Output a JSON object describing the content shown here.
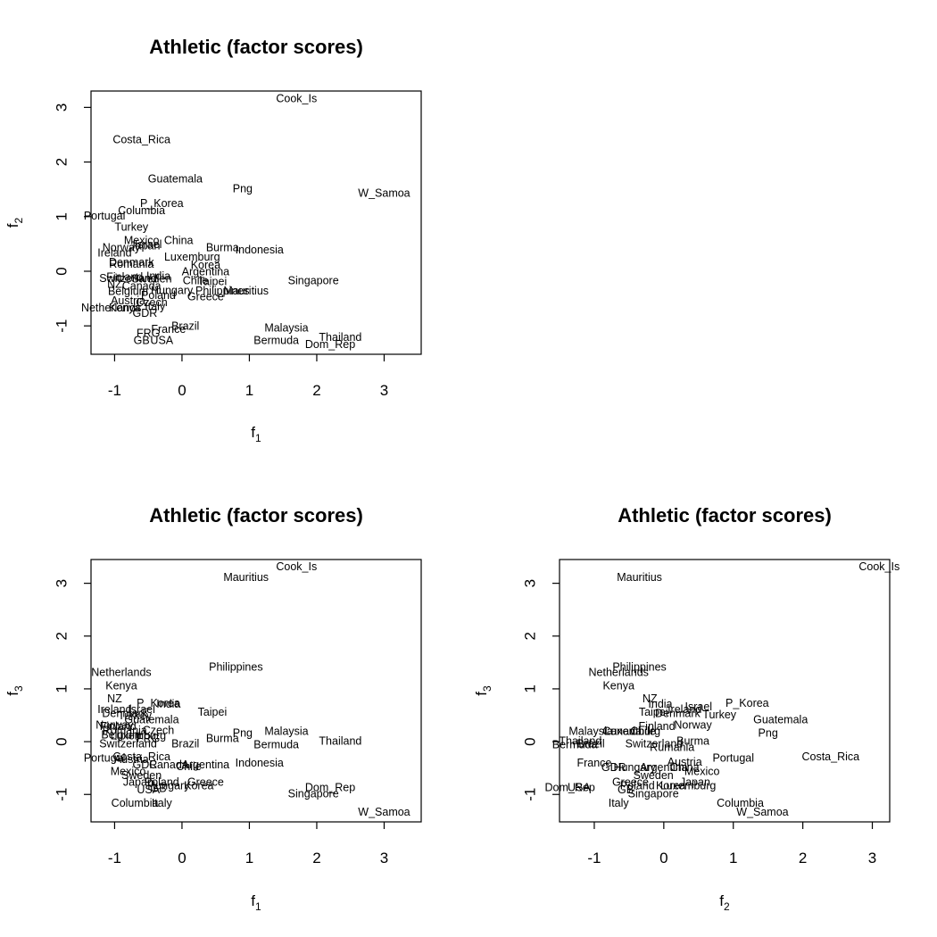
{
  "chart_data": [
    {
      "type": "scatter",
      "title": "Athletic (factor scores)",
      "xlabel": "f",
      "xlabel_sub": "1",
      "ylabel": "f",
      "ylabel_sub": "2",
      "xlim": [
        -1.35,
        3.55
      ],
      "ylim": [
        -1.52,
        3.3
      ],
      "xticks": [
        -1,
        0,
        1,
        2,
        3
      ],
      "yticks": [
        -1,
        0,
        1,
        2,
        3
      ],
      "points": [
        {
          "label": "Cook_Is",
          "x": 1.7,
          "y": 3.15
        },
        {
          "label": "Costa_Rica",
          "x": -0.6,
          "y": 2.4
        },
        {
          "label": "Guatemala",
          "x": -0.1,
          "y": 1.68
        },
        {
          "label": "Png",
          "x": 0.9,
          "y": 1.5
        },
        {
          "label": "W_Samoa",
          "x": 3.0,
          "y": 1.42
        },
        {
          "label": "P_Korea",
          "x": -0.3,
          "y": 1.23
        },
        {
          "label": "Columbia",
          "x": -0.6,
          "y": 1.1
        },
        {
          "label": "Portugal",
          "x": -1.15,
          "y": 1.0
        },
        {
          "label": "Turkey",
          "x": -0.75,
          "y": 0.8
        },
        {
          "label": "Mexico",
          "x": -0.6,
          "y": 0.55
        },
        {
          "label": "China",
          "x": -0.05,
          "y": 0.55
        },
        {
          "label": "Norway",
          "x": -0.9,
          "y": 0.42
        },
        {
          "label": "Israel",
          "x": -0.5,
          "y": 0.48
        },
        {
          "label": "Japan",
          "x": -0.55,
          "y": 0.45
        },
        {
          "label": "Burma",
          "x": 0.6,
          "y": 0.42
        },
        {
          "label": "Indonesia",
          "x": 1.15,
          "y": 0.38
        },
        {
          "label": "Ireland",
          "x": -1.0,
          "y": 0.32
        },
        {
          "label": "Luxemburg",
          "x": 0.15,
          "y": 0.25
        },
        {
          "label": "Denmark",
          "x": -0.75,
          "y": 0.15
        },
        {
          "label": "Romania",
          "x": -0.75,
          "y": 0.12
        },
        {
          "label": "Korea",
          "x": 0.35,
          "y": 0.1
        },
        {
          "label": "Argentina",
          "x": 0.35,
          "y": -0.02
        },
        {
          "label": "Singapore",
          "x": 1.95,
          "y": -0.18
        },
        {
          "label": "Finland",
          "x": -0.85,
          "y": -0.12
        },
        {
          "label": "Switzerland",
          "x": -0.8,
          "y": -0.14
        },
        {
          "label": "India",
          "x": -0.35,
          "y": -0.1
        },
        {
          "label": "Sweden",
          "x": -0.45,
          "y": -0.15
        },
        {
          "label": "Chile",
          "x": 0.2,
          "y": -0.18
        },
        {
          "label": "Taipei",
          "x": 0.45,
          "y": -0.2
        },
        {
          "label": "NZ",
          "x": -1.0,
          "y": -0.25
        },
        {
          "label": "Canada",
          "x": -0.6,
          "y": -0.28
        },
        {
          "label": "Hungary",
          "x": -0.15,
          "y": -0.36
        },
        {
          "label": "Philippines",
          "x": 0.6,
          "y": -0.37
        },
        {
          "label": "Mauritius",
          "x": 0.95,
          "y": -0.37
        },
        {
          "label": "Belgium",
          "x": -0.8,
          "y": -0.38
        },
        {
          "label": "Poland",
          "x": -0.35,
          "y": -0.45
        },
        {
          "label": "Greece",
          "x": 0.35,
          "y": -0.48
        },
        {
          "label": "Austria",
          "x": -0.8,
          "y": -0.55
        },
        {
          "label": "Czech",
          "x": -0.45,
          "y": -0.58
        },
        {
          "label": "Netherlands",
          "x": -1.05,
          "y": -0.68
        },
        {
          "label": "Kenya",
          "x": -0.85,
          "y": -0.68
        },
        {
          "label": "Italy",
          "x": -0.4,
          "y": -0.66
        },
        {
          "label": "GDR",
          "x": -0.55,
          "y": -0.78
        },
        {
          "label": "Brazil",
          "x": 0.05,
          "y": -1.02
        },
        {
          "label": "France",
          "x": -0.2,
          "y": -1.07
        },
        {
          "label": "Malaysia",
          "x": 1.55,
          "y": -1.05
        },
        {
          "label": "FRG",
          "x": -0.5,
          "y": -1.15
        },
        {
          "label": "Thailand",
          "x": 2.35,
          "y": -1.22
        },
        {
          "label": "GB",
          "x": -0.6,
          "y": -1.28
        },
        {
          "label": "USA",
          "x": -0.3,
          "y": -1.28
        },
        {
          "label": "Bermuda",
          "x": 1.4,
          "y": -1.28
        },
        {
          "label": "Dom_Rep",
          "x": 2.2,
          "y": -1.35
        }
      ]
    },
    {
      "type": "scatter",
      "title": "Athletic (factor scores)",
      "xlabel": "f",
      "xlabel_sub": "1",
      "ylabel": "f",
      "ylabel_sub": "3",
      "xlim": [
        -1.35,
        3.55
      ],
      "ylim": [
        -1.52,
        3.45
      ],
      "xticks": [
        -1,
        0,
        1,
        2,
        3
      ],
      "yticks": [
        -1,
        0,
        1,
        2,
        3
      ],
      "points": [
        {
          "label": "Cook_Is",
          "x": 1.7,
          "y": 3.3
        },
        {
          "label": "Mauritius",
          "x": 0.95,
          "y": 3.1
        },
        {
          "label": "Philippines",
          "x": 0.8,
          "y": 1.4
        },
        {
          "label": "Netherlands",
          "x": -0.9,
          "y": 1.3
        },
        {
          "label": "Kenya",
          "x": -0.9,
          "y": 1.05
        },
        {
          "label": "NZ",
          "x": -1.0,
          "y": 0.8
        },
        {
          "label": "P_Korea",
          "x": -0.35,
          "y": 0.72
        },
        {
          "label": "India",
          "x": -0.2,
          "y": 0.7
        },
        {
          "label": "Ireland",
          "x": -1.0,
          "y": 0.6
        },
        {
          "label": "Israel",
          "x": -0.6,
          "y": 0.6
        },
        {
          "label": "Taipei",
          "x": 0.45,
          "y": 0.55
        },
        {
          "label": "Denmark",
          "x": -0.85,
          "y": 0.52
        },
        {
          "label": "Turkey",
          "x": -0.7,
          "y": 0.48
        },
        {
          "label": "Guatemala",
          "x": -0.45,
          "y": 0.4
        },
        {
          "label": "Norway",
          "x": -1.0,
          "y": 0.3
        },
        {
          "label": "Finland",
          "x": -0.95,
          "y": 0.28
        },
        {
          "label": "Romania",
          "x": -0.85,
          "y": 0.2
        },
        {
          "label": "Czech",
          "x": -0.35,
          "y": 0.2
        },
        {
          "label": "Png",
          "x": 0.9,
          "y": 0.15
        },
        {
          "label": "Malaysia",
          "x": 1.55,
          "y": 0.18
        },
        {
          "label": "Belgium",
          "x": -0.9,
          "y": 0.12
        },
        {
          "label": "Luxemburg",
          "x": -0.65,
          "y": 0.1
        },
        {
          "label": "FRG",
          "x": -0.5,
          "y": 0.05
        },
        {
          "label": "Burma",
          "x": 0.6,
          "y": 0.05
        },
        {
          "label": "Thailand",
          "x": 2.35,
          "y": 0.0
        },
        {
          "label": "Switzerland",
          "x": -0.8,
          "y": -0.05
        },
        {
          "label": "Brazil",
          "x": 0.05,
          "y": -0.05
        },
        {
          "label": "Bermuda",
          "x": 1.4,
          "y": -0.07
        },
        {
          "label": "Portugal",
          "x": -1.15,
          "y": -0.32
        },
        {
          "label": "Costa_Rica",
          "x": -0.6,
          "y": -0.3
        },
        {
          "label": "Austria",
          "x": -0.75,
          "y": -0.35
        },
        {
          "label": "Indonesia",
          "x": 1.15,
          "y": -0.42
        },
        {
          "label": "Argentina",
          "x": 0.35,
          "y": -0.45
        },
        {
          "label": "GDR",
          "x": -0.55,
          "y": -0.45
        },
        {
          "label": "Canada",
          "x": -0.2,
          "y": -0.45
        },
        {
          "label": "Chile",
          "x": 0.1,
          "y": -0.48
        },
        {
          "label": "Mexico",
          "x": -0.8,
          "y": -0.58
        },
        {
          "label": "Sweden",
          "x": -0.6,
          "y": -0.65
        },
        {
          "label": "Japan",
          "x": -0.65,
          "y": -0.78
        },
        {
          "label": "Poland",
          "x": -0.3,
          "y": -0.78
        },
        {
          "label": "Greece",
          "x": 0.35,
          "y": -0.78
        },
        {
          "label": "Hungary",
          "x": -0.2,
          "y": -0.85
        },
        {
          "label": "Korea",
          "x": 0.25,
          "y": -0.85
        },
        {
          "label": "Dom_Rep",
          "x": 2.2,
          "y": -0.88
        },
        {
          "label": "USA",
          "x": -0.5,
          "y": -0.92
        },
        {
          "label": "GB",
          "x": -0.35,
          "y": -0.9
        },
        {
          "label": "Singapore",
          "x": 1.95,
          "y": -1.0
        },
        {
          "label": "Columbia",
          "x": -0.7,
          "y": -1.18
        },
        {
          "label": "Italy",
          "x": -0.3,
          "y": -1.18
        },
        {
          "label": "W_Samoa",
          "x": 3.0,
          "y": -1.35
        }
      ]
    },
    {
      "type": "scatter",
      "title": "Athletic (factor scores)",
      "xlabel": "f",
      "xlabel_sub": "2",
      "ylabel": "f",
      "ylabel_sub": "3",
      "xlim": [
        -1.5,
        3.25
      ],
      "ylim": [
        -1.52,
        3.45
      ],
      "xticks": [
        -1,
        0,
        1,
        2,
        3
      ],
      "yticks": [
        -1,
        0,
        1,
        2,
        3
      ],
      "points": [
        {
          "label": "Cook_Is",
          "x": 3.1,
          "y": 3.3
        },
        {
          "label": "Mauritius",
          "x": -0.35,
          "y": 3.1
        },
        {
          "label": "Philippines",
          "x": -0.35,
          "y": 1.4
        },
        {
          "label": "Netherlands",
          "x": -0.65,
          "y": 1.3
        },
        {
          "label": "Kenya",
          "x": -0.65,
          "y": 1.05
        },
        {
          "label": "NZ",
          "x": -0.2,
          "y": 0.8
        },
        {
          "label": "India",
          "x": -0.05,
          "y": 0.7
        },
        {
          "label": "P_Korea",
          "x": 1.2,
          "y": 0.72
        },
        {
          "label": "Israel",
          "x": 0.5,
          "y": 0.65
        },
        {
          "label": "Taipei",
          "x": -0.15,
          "y": 0.55
        },
        {
          "label": "Ireland",
          "x": 0.3,
          "y": 0.6
        },
        {
          "label": "Denmark",
          "x": 0.2,
          "y": 0.52
        },
        {
          "label": "Turkey",
          "x": 0.8,
          "y": 0.5
        },
        {
          "label": "Guatemala",
          "x": 1.68,
          "y": 0.4
        },
        {
          "label": "Finland",
          "x": -0.1,
          "y": 0.28
        },
        {
          "label": "Norway",
          "x": 0.42,
          "y": 0.3
        },
        {
          "label": "Png",
          "x": 1.5,
          "y": 0.15
        },
        {
          "label": "Malaysia",
          "x": -1.05,
          "y": 0.18
        },
        {
          "label": "Canada",
          "x": -0.6,
          "y": 0.18
        },
        {
          "label": "Luxemburg",
          "x": -0.45,
          "y": 0.18
        },
        {
          "label": "Chile",
          "x": -0.3,
          "y": 0.18
        },
        {
          "label": "Burma",
          "x": 0.42,
          "y": 0.0
        },
        {
          "label": "Thailand",
          "x": -1.2,
          "y": 0.0
        },
        {
          "label": "Brazil",
          "x": -1.05,
          "y": -0.05
        },
        {
          "label": "Bermuda",
          "x": -1.28,
          "y": -0.07
        },
        {
          "label": "Switzerland",
          "x": -0.14,
          "y": -0.05
        },
        {
          "label": "Rumania",
          "x": 0.12,
          "y": -0.12
        },
        {
          "label": "Portugal",
          "x": 1.0,
          "y": -0.32
        },
        {
          "label": "Costa_Rica",
          "x": 2.4,
          "y": -0.3
        },
        {
          "label": "France",
          "x": -1.0,
          "y": -0.42
        },
        {
          "label": "Austria",
          "x": 0.3,
          "y": -0.4
        },
        {
          "label": "GDR",
          "x": -0.72,
          "y": -0.5
        },
        {
          "label": "Hungary",
          "x": -0.42,
          "y": -0.5
        },
        {
          "label": "Argentina",
          "x": 0.0,
          "y": -0.5
        },
        {
          "label": "China",
          "x": 0.3,
          "y": -0.5
        },
        {
          "label": "Mexico",
          "x": 0.55,
          "y": -0.58
        },
        {
          "label": "Sweden",
          "x": -0.15,
          "y": -0.65
        },
        {
          "label": "Japan",
          "x": 0.45,
          "y": -0.78
        },
        {
          "label": "Greece",
          "x": -0.48,
          "y": -0.78
        },
        {
          "label": "Poland",
          "x": -0.38,
          "y": -0.85
        },
        {
          "label": "Korea",
          "x": 0.1,
          "y": -0.85
        },
        {
          "label": "Luxemburg",
          "x": 0.35,
          "y": -0.85
        },
        {
          "label": "Dom_Rep",
          "x": -1.35,
          "y": -0.88
        },
        {
          "label": "USA",
          "x": -1.22,
          "y": -0.88
        },
        {
          "label": "GB",
          "x": -0.55,
          "y": -0.92
        },
        {
          "label": "Singapore",
          "x": -0.15,
          "y": -1.0
        },
        {
          "label": "Italy",
          "x": -0.65,
          "y": -1.18
        },
        {
          "label": "Columbia",
          "x": 1.1,
          "y": -1.18
        },
        {
          "label": "W_Samoa",
          "x": 1.42,
          "y": -1.35
        }
      ]
    }
  ]
}
